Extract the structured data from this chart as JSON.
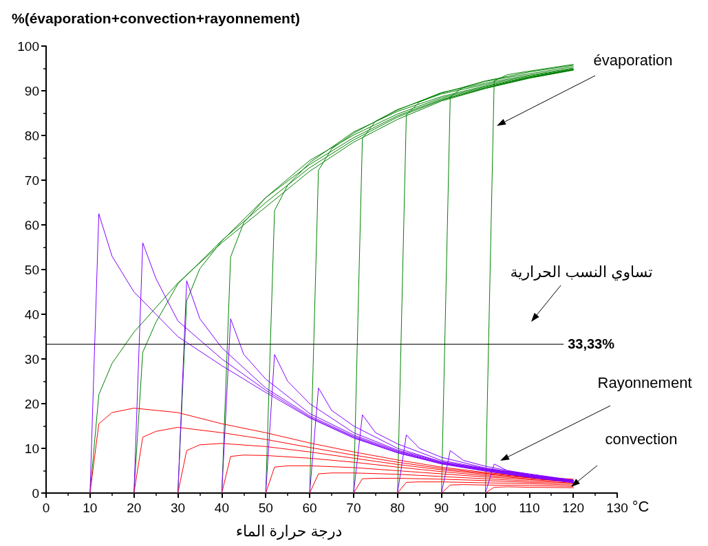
{
  "chart_data": {
    "type": "line",
    "ylabel": "%(évaporation+convection+rayonnement)",
    "xlabel": "°C",
    "xlim": [
      0,
      130
    ],
    "xticks": [
      0,
      10,
      20,
      30,
      40,
      50,
      60,
      70,
      80,
      90,
      100,
      110,
      120,
      130
    ],
    "ylim": [
      0,
      100
    ],
    "yticks": [
      0,
      10,
      20,
      30,
      40,
      50,
      60,
      70,
      80,
      90,
      100
    ],
    "grid": false,
    "marker": "none",
    "line_style": "solid",
    "ref_lines": [
      {
        "axis": "y",
        "value": 33.33,
        "label": "33,33%",
        "color": "#000000"
      }
    ],
    "annotations": [
      "évaporation",
      "تساوي النسب الحرارية",
      "Rayonnement",
      "convection",
      "درجة حرارة الماء"
    ],
    "series": [
      {
        "color": "#008000",
        "x": [
          10,
          12,
          15,
          20,
          30,
          40,
          50,
          60,
          70,
          80,
          90,
          100,
          110,
          120
        ],
        "values": [
          0,
          22,
          29,
          36,
          47,
          56,
          64,
          72,
          78.5,
          83.6,
          87.7,
          90.5,
          92.8,
          94.6
        ]
      },
      {
        "color": "#008000",
        "x": [
          20,
          22,
          25,
          30,
          40,
          50,
          60,
          70,
          80,
          90,
          100,
          110,
          120
        ],
        "values": [
          0,
          31.5,
          38.2,
          46.8,
          56.5,
          65,
          72.8,
          79,
          84.1,
          87.9,
          90.6,
          92.9,
          94.7
        ]
      },
      {
        "color": "#008000",
        "x": [
          30,
          32,
          35,
          40,
          50,
          60,
          70,
          80,
          90,
          100,
          110,
          120
        ],
        "values": [
          0,
          43,
          50.2,
          56.4,
          66.1,
          73.5,
          79.5,
          84.4,
          88.1,
          90.7,
          92.9,
          94.7
        ]
      },
      {
        "color": "#008000",
        "x": [
          40,
          42,
          45,
          50,
          60,
          70,
          80,
          90,
          100,
          110,
          120
        ],
        "values": [
          0,
          52.8,
          60.5,
          66.1,
          74.4,
          80.1,
          84.8,
          88.4,
          90.9,
          93,
          94.8
        ]
      },
      {
        "color": "#008000",
        "x": [
          50,
          52,
          55,
          60,
          70,
          80,
          90,
          100,
          110,
          120
        ],
        "values": [
          0,
          63.2,
          68.9,
          73.9,
          80.8,
          85.4,
          88.7,
          91.1,
          93.1,
          94.8
        ]
      },
      {
        "color": "#008000",
        "x": [
          60,
          62,
          65,
          70,
          80,
          90,
          100,
          110,
          120
        ],
        "values": [
          0,
          72.2,
          77,
          80.5,
          85.8,
          89.3,
          91.4,
          93.3,
          94.9
        ]
      },
      {
        "color": "#008000",
        "x": [
          70,
          72,
          75,
          80,
          90,
          100,
          110,
          120
        ],
        "values": [
          0,
          79.3,
          83.2,
          85.7,
          89.6,
          91.7,
          93.5,
          95.1
        ]
      },
      {
        "color": "#008000",
        "x": [
          80,
          82,
          85,
          90,
          100,
          110,
          120
        ],
        "values": [
          0,
          84.6,
          87.5,
          89.5,
          92.1,
          93.8,
          95.4
        ]
      },
      {
        "color": "#008000",
        "x": [
          90,
          92,
          95,
          100,
          110,
          120
        ],
        "values": [
          0,
          88.7,
          90.8,
          92.2,
          94.2,
          95.7
        ]
      },
      {
        "color": "#008000",
        "x": [
          100,
          102,
          105,
          110,
          120
        ],
        "values": [
          0,
          92.2,
          93.6,
          94.4,
          95.9
        ]
      },
      {
        "color": "#ff0000",
        "x": [
          10,
          12,
          15,
          20,
          30,
          40,
          50,
          60,
          70,
          80,
          90,
          100,
          110,
          120
        ],
        "values": [
          0,
          15.5,
          18,
          19,
          18,
          15.5,
          13.5,
          11.2,
          9.2,
          7.4,
          5.8,
          4.6,
          3.7,
          3.1
        ]
      },
      {
        "color": "#ff0000",
        "x": [
          20,
          22,
          25,
          30,
          40,
          50,
          60,
          70,
          80,
          90,
          100,
          110,
          120
        ],
        "values": [
          0,
          12.5,
          13.8,
          14.7,
          13.5,
          12,
          10.2,
          8.5,
          6.9,
          5.5,
          4.4,
          3.5,
          2.9
        ]
      },
      {
        "color": "#ff0000",
        "x": [
          30,
          32,
          35,
          40,
          50,
          60,
          70,
          80,
          90,
          100,
          110,
          120
        ],
        "values": [
          0,
          9.5,
          10.8,
          11.1,
          10.4,
          9.2,
          7.8,
          6.4,
          5.2,
          4.2,
          3.4,
          2.8
        ]
      },
      {
        "color": "#ff0000",
        "x": [
          40,
          42,
          45,
          50,
          60,
          70,
          80,
          90,
          100,
          110,
          120
        ],
        "values": [
          0,
          8.2,
          8.5,
          8.4,
          7.8,
          6.9,
          5.8,
          4.8,
          3.9,
          3.2,
          2.6
        ]
      },
      {
        "color": "#ff0000",
        "x": [
          50,
          52,
          55,
          60,
          70,
          80,
          90,
          100,
          110,
          120
        ],
        "values": [
          0,
          5.8,
          6.1,
          6.1,
          5.7,
          5,
          4.3,
          3.6,
          3,
          2.5
        ]
      },
      {
        "color": "#ff0000",
        "x": [
          60,
          62,
          65,
          70,
          80,
          90,
          100,
          110,
          120
        ],
        "values": [
          0,
          4.3,
          4.5,
          4.5,
          4.2,
          3.7,
          3.2,
          2.7,
          2.3
        ]
      },
      {
        "color": "#ff0000",
        "x": [
          70,
          72,
          75,
          80,
          90,
          100,
          110,
          120
        ],
        "values": [
          0,
          3.2,
          3.3,
          3.3,
          3.1,
          2.8,
          2.4,
          2.1
        ]
      },
      {
        "color": "#ff0000",
        "x": [
          80,
          82,
          85,
          90,
          100,
          110,
          120
        ],
        "values": [
          0,
          2.4,
          2.5,
          2.5,
          2.3,
          2.1,
          1.8
        ]
      },
      {
        "color": "#ff0000",
        "x": [
          90,
          92,
          95,
          100,
          110,
          120
        ],
        "values": [
          0,
          1.8,
          1.9,
          1.8,
          1.7,
          1.5
        ]
      },
      {
        "color": "#ff0000",
        "x": [
          100,
          102,
          105,
          110,
          120
        ],
        "values": [
          0,
          1.3,
          1.4,
          1.3,
          1.2
        ]
      },
      {
        "color": "#8000ff",
        "x": [
          10,
          12,
          15,
          20,
          30,
          40,
          50,
          60,
          70,
          80,
          90,
          100,
          110,
          120
        ],
        "values": [
          0,
          62.5,
          53,
          45,
          35,
          28.5,
          22.5,
          16.8,
          12.3,
          9,
          6.5,
          4.9,
          3.5,
          2.3
        ]
      },
      {
        "color": "#8000ff",
        "x": [
          20,
          22,
          25,
          30,
          40,
          50,
          60,
          70,
          80,
          90,
          100,
          110,
          120
        ],
        "values": [
          0,
          56,
          48,
          38.5,
          30,
          23,
          17,
          12.5,
          9,
          6.6,
          5,
          3.6,
          2.4
        ]
      },
      {
        "color": "#8000ff",
        "x": [
          30,
          32,
          35,
          40,
          50,
          60,
          70,
          80,
          90,
          100,
          110,
          120
        ],
        "values": [
          0,
          47.5,
          39,
          32.5,
          23.5,
          17.3,
          12.7,
          9.2,
          6.7,
          5.1,
          3.7,
          2.5
        ]
      },
      {
        "color": "#8000ff",
        "x": [
          40,
          42,
          45,
          50,
          60,
          70,
          80,
          90,
          100,
          110,
          120
        ],
        "values": [
          0,
          39,
          31,
          25.5,
          17.8,
          13,
          9.4,
          6.8,
          5.2,
          3.8,
          2.6
        ]
      },
      {
        "color": "#8000ff",
        "x": [
          50,
          52,
          55,
          60,
          70,
          80,
          90,
          100,
          110,
          120
        ],
        "values": [
          0,
          31,
          25,
          20,
          13.5,
          9.6,
          7,
          5.3,
          3.9,
          2.7
        ]
      },
      {
        "color": "#8000ff",
        "x": [
          60,
          62,
          65,
          70,
          80,
          90,
          100,
          110,
          120
        ],
        "values": [
          0,
          23.5,
          18.5,
          15,
          10,
          7,
          5.4,
          4,
          2.8
        ]
      },
      {
        "color": "#8000ff",
        "x": [
          70,
          72,
          75,
          80,
          90,
          100,
          110,
          120
        ],
        "values": [
          0,
          17.5,
          13.5,
          11,
          7.3,
          5.5,
          4.1,
          2.8
        ]
      },
      {
        "color": "#8000ff",
        "x": [
          80,
          82,
          85,
          90,
          100,
          110,
          120
        ],
        "values": [
          0,
          13,
          10,
          8,
          5.6,
          4.1,
          2.8
        ]
      },
      {
        "color": "#8000ff",
        "x": [
          90,
          92,
          95,
          100,
          110,
          120
        ],
        "values": [
          0,
          9.5,
          7.3,
          6,
          4.1,
          2.8
        ]
      },
      {
        "color": "#8000ff",
        "x": [
          100,
          102,
          105,
          110,
          120
        ],
        "values": [
          0,
          6.5,
          5,
          4.3,
          2.9
        ]
      }
    ]
  }
}
